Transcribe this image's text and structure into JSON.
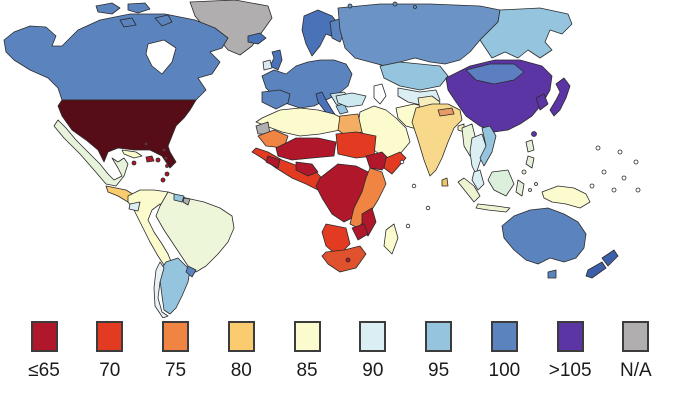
{
  "legend": {
    "items": [
      {
        "label": "≤65",
        "color": "#b0172a"
      },
      {
        "label": "70",
        "color": "#e23b22"
      },
      {
        "label": "75",
        "color": "#ef8443"
      },
      {
        "label": "80",
        "color": "#fbcb70"
      },
      {
        "label": "85",
        "color": "#fbfbce"
      },
      {
        "label": "90",
        "color": "#dbeef3"
      },
      {
        "label": "95",
        "color": "#94c4de"
      },
      {
        "label": "100",
        "color": "#5b83be"
      },
      {
        "label": ">105",
        "color": "#5c35a5"
      },
      {
        "label": "N/A",
        "color": "#b0aeaf"
      }
    ]
  },
  "map": {
    "ocean_color": "#ffffff",
    "border_color": "#2b2b2b"
  },
  "chart_data": {
    "type": "choropleth",
    "description": "World choropleth map; countries shaded by value bins from ≤65 (red) to >105 (purple), N/A gray; ocean white with thin dark coastlines.",
    "bins": [
      "≤65",
      "70",
      "75",
      "80",
      "85",
      "90",
      "95",
      "100",
      ">105",
      "N/A"
    ],
    "regions": [
      {
        "id": "greenland",
        "name": "Greenland",
        "value": "N/A",
        "color": "#b0aeaf"
      },
      {
        "id": "canada",
        "name": "Canada & Alaska",
        "value": "100",
        "color": "#5b83be"
      },
      {
        "id": "hudson_bay",
        "name": "Hudson Bay (water)",
        "value": "water",
        "color": "#ffffff"
      },
      {
        "id": "usa",
        "name": "United States",
        "value": "≤65 (darkest shade)",
        "color": "#570d17"
      },
      {
        "id": "mexico",
        "name": "Mexico",
        "value": "85–90",
        "color": "#e7f3da"
      },
      {
        "id": "central_america",
        "name": "Central America",
        "value": "80",
        "color": "#fbcb70"
      },
      {
        "id": "cuba",
        "name": "Cuba",
        "value": "85",
        "color": "#fbfbce"
      },
      {
        "id": "caribbean",
        "name": "Caribbean islands",
        "value": "≤65",
        "color": "#b0172a"
      },
      {
        "id": "andes_north",
        "name": "Colombia/Venezuela/Peru/Bolivia/Paraguay",
        "value": "85",
        "color": "#fbfbce"
      },
      {
        "id": "brazil",
        "name": "Brazil",
        "value": "85–90",
        "color": "#edf6d8"
      },
      {
        "id": "ecuador",
        "name": "Ecuador",
        "value": "90",
        "color": "#dbeef3"
      },
      {
        "id": "guyanas",
        "name": "Guyanas",
        "value": "95",
        "color": "#94c4de"
      },
      {
        "id": "french_guiana",
        "name": "French Guiana",
        "value": "N/A",
        "color": "#b0aeaf"
      },
      {
        "id": "argentina",
        "name": "Argentina",
        "value": "95",
        "color": "#94c4de"
      },
      {
        "id": "chile",
        "name": "Chile",
        "value": "90",
        "color": "#e9f1f5"
      },
      {
        "id": "uruguay",
        "name": "Uruguay",
        "value": "100",
        "color": "#5b83be"
      },
      {
        "id": "nordics",
        "name": "Scandinavia",
        "value": "100",
        "color": "#4a72b8"
      },
      {
        "id": "finland",
        "name": "Finland",
        "value": "100",
        "color": "#5b83be"
      },
      {
        "id": "iceland",
        "name": "Iceland",
        "value": "100",
        "color": "#4a72b8"
      },
      {
        "id": "uk",
        "name": "United Kingdom",
        "value": "100",
        "color": "#4a72b8"
      },
      {
        "id": "ireland",
        "name": "Ireland",
        "value": "95",
        "color": "#d8e8f0"
      },
      {
        "id": "europe_west",
        "name": "Western/Central Europe",
        "value": "100",
        "color": "#5b83be"
      },
      {
        "id": "iberia",
        "name": "Spain & Portugal",
        "value": "100",
        "color": "#5b83be"
      },
      {
        "id": "italy",
        "name": "Italy",
        "value": "100",
        "color": "#4a72b8"
      },
      {
        "id": "balkans",
        "name": "Balkans",
        "value": "90",
        "color": "#c9e5ee"
      },
      {
        "id": "greece",
        "name": "Greece",
        "value": "95",
        "color": "#94c4de"
      },
      {
        "id": "russia_west",
        "name": "Russia (west)",
        "value": "95–100",
        "color": "#6b93c6"
      },
      {
        "id": "russia_east",
        "name": "Russia (east Siberia)",
        "value": "95",
        "color": "#94c4de"
      },
      {
        "id": "caspian",
        "name": "Caspian Sea (water)",
        "value": "water",
        "color": "#ffffff"
      },
      {
        "id": "kazakhstan",
        "name": "Kazakhstan",
        "value": "95",
        "color": "#94c4de"
      },
      {
        "id": "central_asia",
        "name": "Central Asia",
        "value": "90",
        "color": "#dbeef3"
      },
      {
        "id": "turkey",
        "name": "Turkey",
        "value": "90",
        "color": "#cde9f0"
      },
      {
        "id": "middle_east",
        "name": "Arabia/Levant/Iraq",
        "value": "85",
        "color": "#fbfbce"
      },
      {
        "id": "iran",
        "name": "Iran",
        "value": "85",
        "color": "#fbfbce"
      },
      {
        "id": "pak_afghan",
        "name": "Pakistan/Afghanistan",
        "value": "85",
        "color": "#f6eebe"
      },
      {
        "id": "north_africa",
        "name": "Morocco/Algeria/Libya",
        "value": "85",
        "color": "#fbfbce"
      },
      {
        "id": "egypt",
        "name": "Egypt",
        "value": "80",
        "color": "#f3ae63"
      },
      {
        "id": "western_sahara",
        "name": "Western Sahara",
        "value": "N/A",
        "color": "#b0aeaf"
      },
      {
        "id": "mauritania",
        "name": "Mauritania",
        "value": "75",
        "color": "#ef8443"
      },
      {
        "id": "sahel",
        "name": "Mali/Niger/Burkina Faso",
        "value": "≤65",
        "color": "#b0172a"
      },
      {
        "id": "chad_sudan",
        "name": "Chad/Sudan",
        "value": "70",
        "color": "#e23b22"
      },
      {
        "id": "west_africa",
        "name": "West African coast",
        "value": "70",
        "color": "#e23b22"
      },
      {
        "id": "nigeria_ivory",
        "name": "Nigeria/Ivory Coast",
        "value": "≤65",
        "color": "#b0172a"
      },
      {
        "id": "ethiopia",
        "name": "Ethiopia",
        "value": "≤65",
        "color": "#b0172a"
      },
      {
        "id": "somalia",
        "name": "Somalia",
        "value": "70",
        "color": "#e23b22"
      },
      {
        "id": "central_africa",
        "name": "DR Congo/CAR/Angola",
        "value": "≤65",
        "color": "#b0172a"
      },
      {
        "id": "east_africa",
        "name": "Kenya/Tanzania/Zambia",
        "value": "75",
        "color": "#ef8443"
      },
      {
        "id": "mozambique",
        "name": "Mozambique",
        "value": "≤65",
        "color": "#b0172a"
      },
      {
        "id": "zimbabwe",
        "name": "Zimbabwe",
        "value": "≤65",
        "color": "#b0172a"
      },
      {
        "id": "namibia_botswana",
        "name": "Namibia/Botswana",
        "value": "70",
        "color": "#e23b22"
      },
      {
        "id": "south_africa",
        "name": "South Africa",
        "value": "70",
        "color": "#e0512d"
      },
      {
        "id": "lesotho",
        "name": "Lesotho",
        "value": "≤65",
        "color": "#b0172a"
      },
      {
        "id": "madagascar",
        "name": "Madagascar",
        "value": "85",
        "color": "#fbfbce"
      },
      {
        "id": "india",
        "name": "India",
        "value": "80",
        "color": "#f8d98c"
      },
      {
        "id": "nepal",
        "name": "Nepal",
        "value": "75",
        "color": "#e89b66"
      },
      {
        "id": "sri_lanka",
        "name": "Sri Lanka",
        "value": "80",
        "color": "#f0c468"
      },
      {
        "id": "bangladesh",
        "name": "Bangladesh",
        "value": "85",
        "color": "#f5edc0"
      },
      {
        "id": "china",
        "name": "China",
        "value": ">105",
        "color": "#5c35a5"
      },
      {
        "id": "mongolia",
        "name": "Mongolia",
        "value": "100",
        "color": "#5b7fc0"
      },
      {
        "id": "korea_japan",
        "name": "Korea/Japan/Taiwan",
        "value": ">105",
        "color": "#5c35a5"
      },
      {
        "id": "myanmar",
        "name": "Myanmar",
        "value": "85–90",
        "color": "#e9f4d8"
      },
      {
        "id": "thailand",
        "name": "Thailand/Laos/Cambodia",
        "value": "90",
        "color": "#dbeef3"
      },
      {
        "id": "vietnam",
        "name": "Vietnam",
        "value": "95",
        "color": "#94c4de"
      },
      {
        "id": "malaysia",
        "name": "Malay Peninsula",
        "value": "90",
        "color": "#dbeef3"
      },
      {
        "id": "philippines",
        "name": "Philippines",
        "value": "85–90",
        "color": "#e4f0da"
      },
      {
        "id": "sumatra",
        "name": "Sumatra",
        "value": "85–90",
        "color": "#eef3d2"
      },
      {
        "id": "borneo",
        "name": "Borneo",
        "value": "90",
        "color": "#dcefdc"
      },
      {
        "id": "sulawesi",
        "name": "Sulawesi/Moluccas",
        "value": "85–90",
        "color": "#e4f0da"
      },
      {
        "id": "java",
        "name": "Java",
        "value": "85–90",
        "color": "#eef3d2"
      },
      {
        "id": "new_guinea",
        "name": "New Guinea",
        "value": "85",
        "color": "#fbfbce"
      },
      {
        "id": "australia",
        "name": "Australia",
        "value": "100",
        "color": "#5b83be"
      },
      {
        "id": "new_zealand",
        "name": "New Zealand",
        "value": "100",
        "color": "#3d5fa9"
      },
      {
        "id": "pacific_islands",
        "name": "Small island markers",
        "value": "N/A",
        "color": "#ffffff"
      }
    ]
  }
}
